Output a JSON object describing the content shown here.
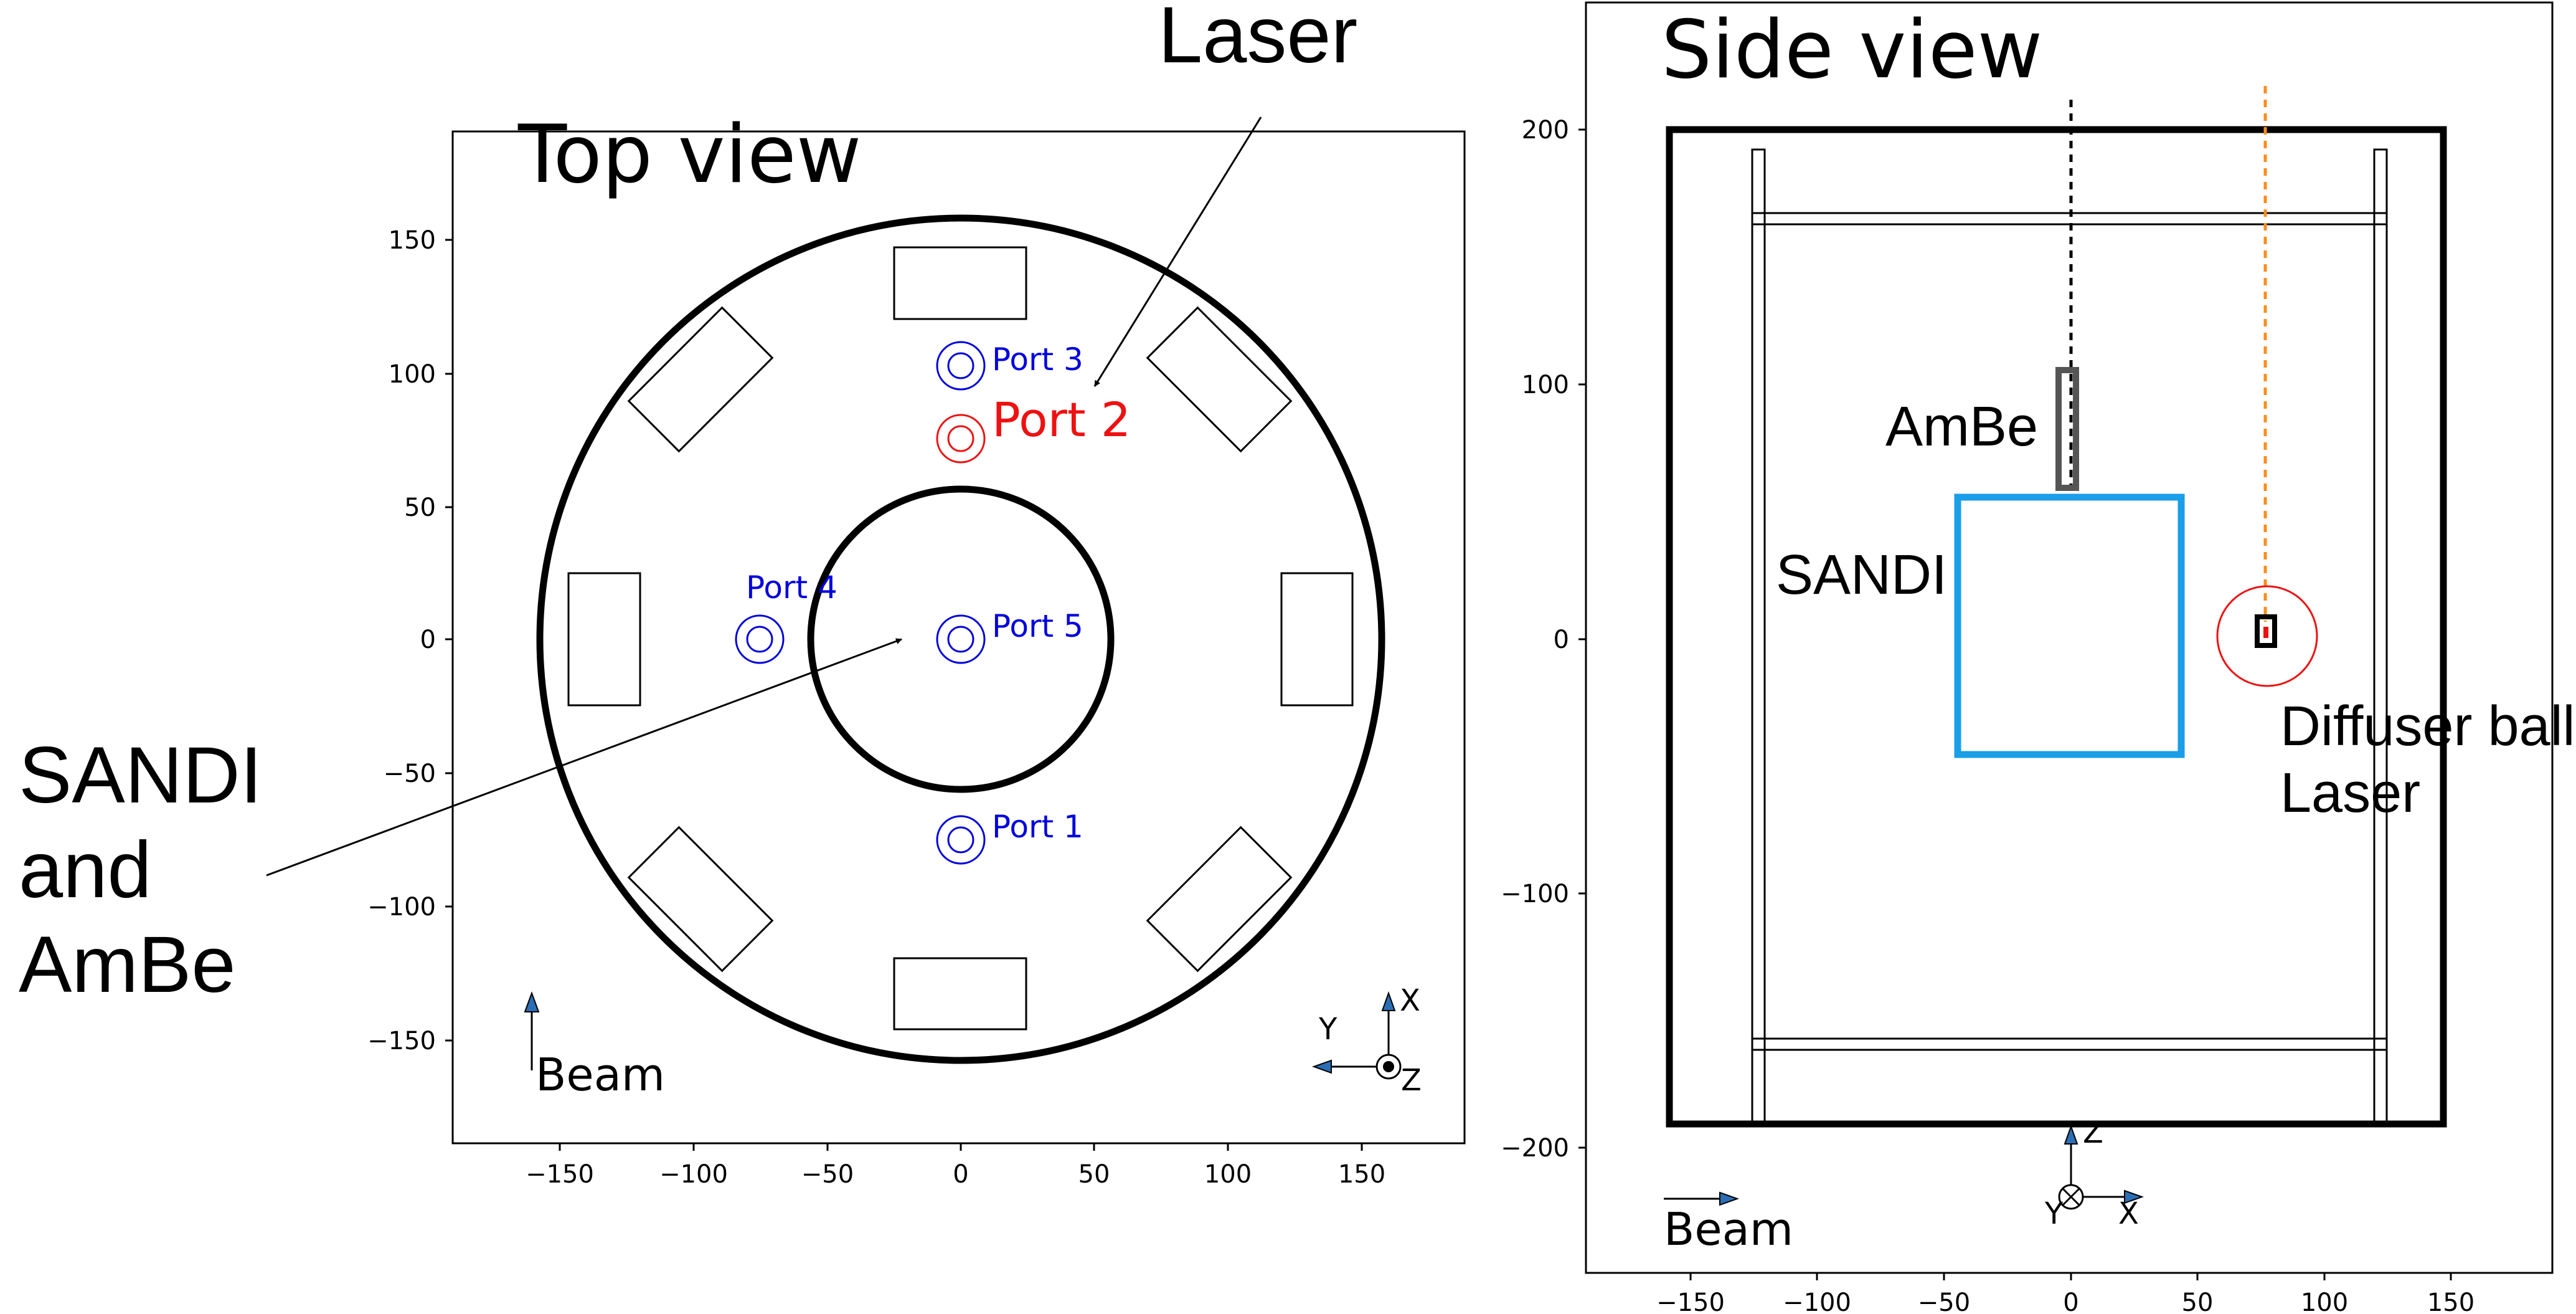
{
  "top_view": {
    "title": "Top view",
    "x_ticks": [
      "−150",
      "−100",
      "−50",
      "0",
      "50",
      "100",
      "150"
    ],
    "y_ticks": [
      "150",
      "100",
      "50",
      "0",
      "−50",
      "−100",
      "−150"
    ],
    "ports": [
      {
        "label": "Port 3",
        "color": "#0000dd"
      },
      {
        "label": "Port 2",
        "color": "#ee1111"
      },
      {
        "label": "Port 4",
        "color": "#0000dd"
      },
      {
        "label": "Port 5",
        "color": "#0000dd"
      },
      {
        "label": "Port 1",
        "color": "#0000dd"
      }
    ],
    "beam_label": "Beam",
    "axes": {
      "x": "X",
      "y": "Y",
      "z": "Z"
    }
  },
  "side_view": {
    "title": "Side view",
    "x_ticks": [
      "−150",
      "−100",
      "−50",
      "0",
      "50",
      "100",
      "150"
    ],
    "y_ticks": [
      "200",
      "100",
      "0",
      "−100",
      "−200"
    ],
    "ambe_label": "AmBe",
    "sandi_label": "SANDI",
    "diffuser_label_line1": "Diffuser ball",
    "diffuser_label_line2": "Laser",
    "beam_label": "Beam",
    "axes": {
      "x": "X",
      "y": "Y",
      "z": "Z"
    },
    "colors": {
      "sandi": "#1a9ee8",
      "laser_line": "#ff8c1a",
      "diffuser": "#ee1111"
    }
  },
  "annotations": {
    "laser": "Laser",
    "sandi_line1": "SANDI",
    "sandi_line2": "and",
    "sandi_line3": "AmBe"
  }
}
